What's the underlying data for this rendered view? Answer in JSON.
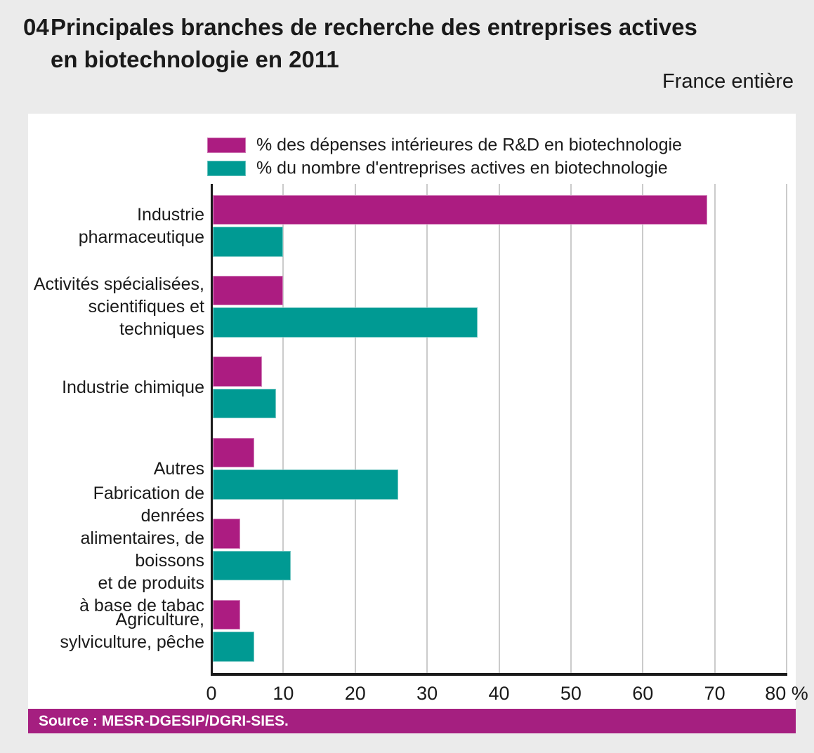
{
  "header": {
    "number": "04",
    "title_line1": "Principales branches de recherche des entreprises actives",
    "title_line2": "en biotechnologie en 2011",
    "region": "France entière"
  },
  "legend": [
    {
      "label": "% des dépenses intérieures de R&D en biotechnologie",
      "color": "#AC1C81"
    },
    {
      "label": "% du nombre d'entreprises actives en biotechnologie",
      "color": "#009A93"
    }
  ],
  "chart_data": {
    "type": "bar",
    "orientation": "horizontal",
    "title": "Principales branches de recherche des entreprises actives en biotechnologie en 2011",
    "subtitle": "France entière",
    "categories": [
      "Industrie pharmaceutique",
      "Activités spécialisées,\nscientifiques et techniques",
      "Industrie chimique",
      "Autres",
      "Fabrication de denrées\nalimentaires, de boissons\net de produits\nà base de tabac",
      "Agriculture,\nsylviculture, pêche"
    ],
    "series": [
      {
        "name": "% des dépenses intérieures de R&D en biotechnologie",
        "color": "#AC1C81",
        "values": [
          69,
          10,
          7,
          6,
          4,
          4
        ]
      },
      {
        "name": "% du nombre d'entreprises actives en biotechnologie",
        "color": "#009A93",
        "values": [
          10,
          37,
          9,
          26,
          11,
          6
        ]
      }
    ],
    "xlim": [
      0,
      80
    ],
    "xticks": [
      0,
      10,
      20,
      30,
      40,
      50,
      60,
      70,
      80
    ],
    "xtick_labels": [
      "0",
      "10",
      "20",
      "30",
      "40",
      "50",
      "60",
      "70",
      "80 %"
    ],
    "grid": true,
    "legend_position": "top"
  },
  "source": {
    "text": "Source : MESR-DGESIP/DGRI-SIES."
  },
  "colors": {
    "page_bg": "#EBEBEB",
    "panel_bg": "#FFFFFF",
    "gridline": "#CBCBCB",
    "axis": "#1A1A1A",
    "text": "#1A1A1A",
    "source_bar_bg": "#A51F80",
    "source_text": "#FFFFFF"
  }
}
